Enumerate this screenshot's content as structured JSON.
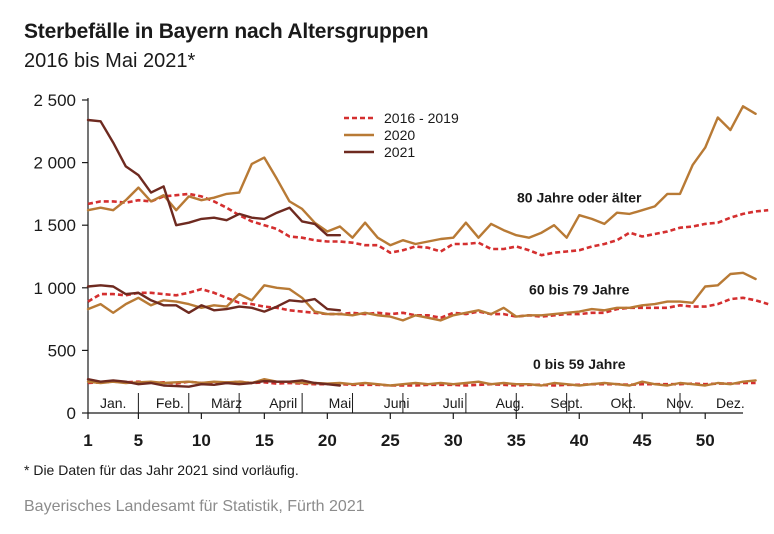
{
  "header": {
    "title": "Sterbefälle in Bayern nach Altersgruppen",
    "subtitle": "2016 bis Mai 2021*"
  },
  "footer": {
    "footnote": "* Die Daten für das Jahr 2021 sind vorläufig.",
    "source": "Bayerisches Landesamt für Statistik, Fürth 2021"
  },
  "colors": {
    "s2016_2019": "#d42f2f",
    "s2020": "#b87a35",
    "s2021": "#6e2a20"
  },
  "chart_data": {
    "type": "line",
    "xlim": [
      1,
      53
    ],
    "ylim": [
      0,
      2500
    ],
    "y_ticks": [
      0,
      500,
      1000,
      1500,
      2000,
      2500
    ],
    "y_tick_labels": [
      "0",
      "500",
      "1 000",
      "1 500",
      "2 000",
      "2 500"
    ],
    "x_ticks": [
      1,
      5,
      10,
      15,
      20,
      25,
      30,
      35,
      40,
      45,
      50
    ],
    "x_tick_labels": [
      "1",
      "5",
      "10",
      "15",
      "20",
      "25",
      "30",
      "35",
      "40",
      "45",
      "50"
    ],
    "months": [
      {
        "label": "Jan.",
        "x": 3
      },
      {
        "label": "Feb.",
        "x": 7.5
      },
      {
        "label": "März",
        "x": 12
      },
      {
        "label": "April",
        "x": 16.5
      },
      {
        "label": "Mai",
        "x": 21
      },
      {
        "label": "Juni",
        "x": 25.5
      },
      {
        "label": "Juli",
        "x": 30
      },
      {
        "label": "Aug.",
        "x": 34.5
      },
      {
        "label": "Sept.",
        "x": 39
      },
      {
        "label": "Okt.",
        "x": 43.5
      },
      {
        "label": "Nov.",
        "x": 48
      },
      {
        "label": "Dez.",
        "x": 52
      }
    ],
    "month_dividers": [
      5,
      9,
      13,
      18,
      22,
      26,
      31,
      35,
      39,
      44,
      48
    ],
    "grid": false,
    "legend_position": "top-center",
    "legend": [
      {
        "name": "2016 - 2019",
        "key": "s2016_2019",
        "dash": true
      },
      {
        "name": "2020",
        "key": "s2020",
        "dash": false
      },
      {
        "name": "2021",
        "key": "s2021",
        "dash": false
      }
    ],
    "groups": [
      {
        "label": "80 Jahre oder älter",
        "label_x": 40,
        "label_y": 1720,
        "series": {
          "s2016_2019": [
            1670,
            1690,
            1690,
            1680,
            1700,
            1690,
            1730,
            1740,
            1750,
            1730,
            1690,
            1640,
            1580,
            1530,
            1500,
            1470,
            1410,
            1400,
            1380,
            1370,
            1370,
            1360,
            1340,
            1340,
            1280,
            1300,
            1330,
            1320,
            1290,
            1350,
            1350,
            1360,
            1310,
            1310,
            1330,
            1300,
            1260,
            1280,
            1290,
            1300,
            1330,
            1350,
            1380,
            1440,
            1410,
            1430,
            1450,
            1480,
            1490,
            1510,
            1520,
            1560,
            1590,
            1610,
            1620
          ],
          "s2020": [
            1620,
            1640,
            1620,
            1700,
            1800,
            1690,
            1740,
            1620,
            1730,
            1700,
            1720,
            1750,
            1760,
            1990,
            2040,
            1870,
            1690,
            1630,
            1520,
            1450,
            1490,
            1400,
            1520,
            1400,
            1340,
            1380,
            1350,
            1370,
            1390,
            1400,
            1520,
            1400,
            1510,
            1460,
            1420,
            1400,
            1440,
            1500,
            1400,
            1580,
            1550,
            1510,
            1600,
            1590,
            1620,
            1650,
            1750,
            1750,
            1980,
            2120,
            2360,
            2260,
            2450,
            2390
          ],
          "s2021": [
            2340,
            2330,
            2160,
            1970,
            1900,
            1760,
            1810,
            1500,
            1520,
            1550,
            1560,
            1540,
            1590,
            1560,
            1550,
            1600,
            1640,
            1530,
            1510,
            1420,
            1420
          ]
        }
      },
      {
        "label": "60 bis 79 Jahre",
        "label_x": 40,
        "label_y": 985,
        "series": {
          "s2016_2019": [
            890,
            950,
            950,
            940,
            960,
            960,
            950,
            940,
            960,
            990,
            960,
            920,
            880,
            870,
            850,
            840,
            820,
            810,
            800,
            790,
            790,
            800,
            790,
            800,
            790,
            800,
            780,
            780,
            760,
            800,
            790,
            810,
            790,
            790,
            770,
            780,
            770,
            780,
            790,
            790,
            800,
            800,
            830,
            840,
            840,
            840,
            840,
            860,
            850,
            850,
            870,
            910,
            920,
            900,
            870
          ],
          "s2020": [
            830,
            870,
            800,
            870,
            920,
            860,
            900,
            890,
            870,
            840,
            860,
            850,
            950,
            900,
            1020,
            1000,
            990,
            920,
            810,
            790,
            790,
            780,
            800,
            780,
            770,
            740,
            780,
            760,
            740,
            780,
            800,
            820,
            790,
            840,
            770,
            780,
            780,
            790,
            800,
            810,
            830,
            820,
            840,
            840,
            860,
            870,
            890,
            890,
            880,
            1010,
            1020,
            1110,
            1120,
            1070
          ],
          "s2021": [
            1010,
            1020,
            1010,
            950,
            960,
            900,
            860,
            860,
            800,
            860,
            820,
            830,
            850,
            840,
            810,
            850,
            900,
            890,
            910,
            830,
            820
          ]
        }
      },
      {
        "label": "0 bis 59 Jahre",
        "label_x": 40,
        "label_y": 390,
        "series": {
          "s2016_2019": [
            240,
            245,
            250,
            245,
            250,
            240,
            245,
            235,
            250,
            240,
            245,
            240,
            250,
            240,
            245,
            235,
            240,
            235,
            230,
            230,
            230,
            225,
            225,
            225,
            220,
            220,
            220,
            225,
            225,
            225,
            220,
            225,
            230,
            225,
            220,
            225,
            225,
            220,
            225,
            225,
            230,
            230,
            230,
            225,
            230,
            230,
            230,
            230,
            235,
            230,
            235,
            235,
            240,
            240
          ],
          "s2020": [
            250,
            240,
            250,
            240,
            245,
            250,
            240,
            245,
            250,
            240,
            250,
            245,
            250,
            240,
            270,
            250,
            250,
            240,
            240,
            235,
            240,
            230,
            240,
            230,
            220,
            230,
            240,
            230,
            240,
            230,
            240,
            250,
            230,
            240,
            230,
            230,
            220,
            240,
            230,
            220,
            230,
            240,
            230,
            220,
            250,
            230,
            220,
            240,
            230,
            220,
            240,
            230,
            250,
            260
          ],
          "s2021": [
            270,
            250,
            260,
            250,
            230,
            240,
            220,
            215,
            210,
            230,
            225,
            240,
            230,
            240,
            255,
            250,
            250,
            260,
            240,
            230,
            220
          ]
        }
      }
    ]
  }
}
